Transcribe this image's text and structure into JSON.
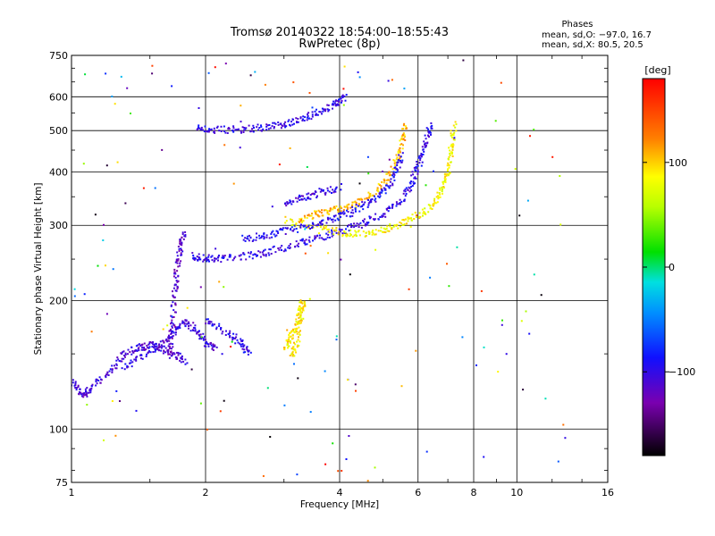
{
  "header": {
    "title_line1": "Tromsø 20140322 18:54:00–18:55:43",
    "title_line2": "RwPretec (8p)"
  },
  "stats": {
    "heading": "Phases",
    "line_o": "mean, sd,O: −97.0, 16.7",
    "line_x": "mean, sd,X:  80.5, 20.5"
  },
  "colorbar": {
    "unit_label": "[deg]",
    "tick_labels": [
      "100",
      "0",
      "−100"
    ],
    "tick_values": [
      100,
      0,
      -100
    ],
    "range": [
      -180,
      180
    ]
  },
  "chart_data": {
    "type": "scatter",
    "xlabel": "Frequency [MHz]",
    "ylabel": "Stationary phase Virtual Height [km]",
    "x_scale": "log",
    "y_scale": "log",
    "xlim": [
      1,
      16
    ],
    "ylim": [
      75,
      750
    ],
    "x_ticks": [
      {
        "value": 1,
        "label": "1"
      },
      {
        "value": 2,
        "label": "2"
      },
      {
        "value": 4,
        "label": "4"
      },
      {
        "value": 6,
        "label": "6"
      },
      {
        "value": 8,
        "label": "8"
      },
      {
        "value": 10,
        "label": "10"
      },
      {
        "value": 16,
        "label": "16"
      }
    ],
    "y_ticks": [
      {
        "value": 75,
        "label": "75"
      },
      {
        "value": 100,
        "label": "100"
      },
      {
        "value": 200,
        "label": "200"
      },
      {
        "value": 300,
        "label": "300"
      },
      {
        "value": 400,
        "label": "400"
      },
      {
        "value": 500,
        "label": "500"
      },
      {
        "value": 600,
        "label": "600"
      },
      {
        "value": 750,
        "label": "750"
      }
    ],
    "grid": true,
    "colormap": "rainbow",
    "color_variable": "phase [deg]",
    "traces": [
      {
        "id": "E-region lower",
        "phase": -110,
        "points": [
          [
            1.0,
            130
          ],
          [
            1.05,
            120
          ],
          [
            1.1,
            125
          ],
          [
            1.2,
            135
          ],
          [
            1.3,
            150
          ],
          [
            1.4,
            155
          ],
          [
            1.5,
            158
          ],
          [
            1.6,
            155
          ],
          [
            1.7,
            150
          ],
          [
            1.8,
            145
          ]
        ]
      },
      {
        "id": "E-region upper",
        "phase": -105,
        "points": [
          [
            1.3,
            140
          ],
          [
            1.45,
            150
          ],
          [
            1.6,
            160
          ],
          [
            1.7,
            170
          ],
          [
            1.8,
            180
          ],
          [
            1.9,
            170
          ],
          [
            2.0,
            160
          ],
          [
            2.1,
            155
          ]
        ]
      },
      {
        "id": "F1-region vertical",
        "phase": -115,
        "points": [
          [
            1.65,
            150
          ],
          [
            1.68,
            180
          ],
          [
            1.7,
            210
          ],
          [
            1.72,
            240
          ],
          [
            1.75,
            270
          ],
          [
            1.78,
            290
          ]
        ]
      },
      {
        "id": "F O-trace",
        "phase": -100,
        "points": [
          [
            1.85,
            255
          ],
          [
            2.0,
            252
          ],
          [
            2.2,
            252
          ],
          [
            2.5,
            256
          ],
          [
            2.8,
            262
          ],
          [
            3.2,
            272
          ],
          [
            3.6,
            283
          ],
          [
            4.0,
            292
          ],
          [
            4.5,
            305
          ],
          [
            5.0,
            320
          ],
          [
            5.5,
            345
          ],
          [
            5.8,
            380
          ],
          [
            6.0,
            420
          ],
          [
            6.2,
            470
          ],
          [
            6.4,
            520
          ]
        ]
      },
      {
        "id": "F X-trace",
        "phase": 85,
        "points": [
          [
            3.0,
            310
          ],
          [
            3.5,
            300
          ],
          [
            4.0,
            290
          ],
          [
            4.5,
            288
          ],
          [
            5.0,
            295
          ],
          [
            5.5,
            305
          ],
          [
            6.0,
            320
          ],
          [
            6.5,
            340
          ],
          [
            6.8,
            370
          ],
          [
            7.0,
            410
          ],
          [
            7.1,
            460
          ],
          [
            7.2,
            520
          ]
        ]
      },
      {
        "id": "F X high",
        "phase": 105,
        "points": [
          [
            3.2,
            305
          ],
          [
            3.5,
            320
          ],
          [
            3.8,
            325
          ],
          [
            4.2,
            335
          ],
          [
            4.6,
            350
          ],
          [
            5.0,
            375
          ],
          [
            5.3,
            420
          ],
          [
            5.5,
            470
          ],
          [
            5.6,
            520
          ]
        ]
      },
      {
        "id": "F O second",
        "phase": -95,
        "points": [
          [
            2.4,
            280
          ],
          [
            2.7,
            285
          ],
          [
            3.0,
            292
          ],
          [
            3.4,
            300
          ],
          [
            3.8,
            310
          ],
          [
            4.2,
            322
          ],
          [
            4.6,
            340
          ],
          [
            5.0,
            360
          ],
          [
            5.3,
            395
          ],
          [
            5.5,
            440
          ]
        ]
      },
      {
        "id": "F multi-hop",
        "phase": -100,
        "points": [
          [
            1.9,
            510
          ],
          [
            2.1,
            505
          ],
          [
            2.4,
            505
          ],
          [
            2.7,
            510
          ],
          [
            3.0,
            520
          ],
          [
            3.3,
            535
          ],
          [
            3.6,
            555
          ],
          [
            3.9,
            580
          ],
          [
            4.1,
            600
          ]
        ]
      },
      {
        "id": "Mid-height band",
        "phase": -105,
        "points": [
          [
            3.0,
            340
          ],
          [
            3.3,
            350
          ],
          [
            3.6,
            360
          ],
          [
            4.0,
            370
          ]
        ]
      },
      {
        "id": "Es patch",
        "phase": 90,
        "points": [
          [
            3.0,
            155
          ],
          [
            3.1,
            165
          ],
          [
            3.2,
            175
          ],
          [
            3.25,
            190
          ],
          [
            3.3,
            200
          ],
          [
            3.2,
            160
          ],
          [
            3.1,
            150
          ]
        ]
      },
      {
        "id": "Low band",
        "phase": -100,
        "points": [
          [
            2.0,
            180
          ],
          [
            2.2,
            170
          ],
          [
            2.4,
            160
          ],
          [
            2.5,
            150
          ]
        ]
      }
    ]
  }
}
